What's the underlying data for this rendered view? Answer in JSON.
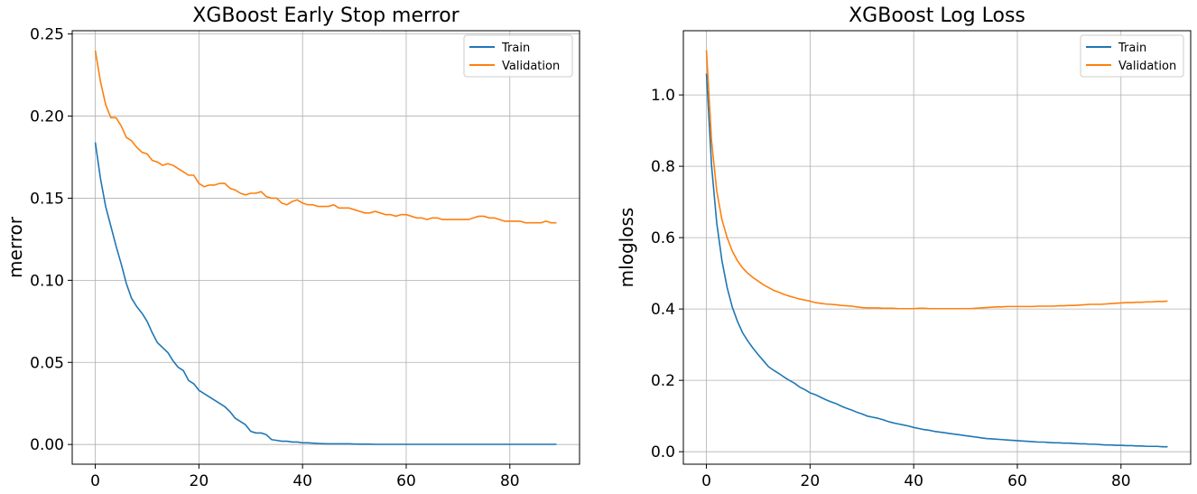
{
  "chart_data": [
    {
      "type": "line",
      "title": "XGBoost Early Stop merror",
      "xlabel": "",
      "ylabel": "merror",
      "xlim": [
        -4.45,
        93.45
      ],
      "ylim": [
        -0.012,
        0.252
      ],
      "xticks": [
        0,
        20,
        40,
        60,
        80
      ],
      "yticks": [
        0.0,
        0.05,
        0.1,
        0.15,
        0.2,
        0.25
      ],
      "ytick_labels": [
        "0.00",
        "0.05",
        "0.10",
        "0.15",
        "0.20",
        "0.25"
      ],
      "grid": true,
      "legend_position": "top-right",
      "x": [
        0,
        1,
        2,
        3,
        4,
        5,
        6,
        7,
        8,
        9,
        10,
        11,
        12,
        13,
        14,
        15,
        16,
        17,
        18,
        19,
        20,
        21,
        22,
        23,
        24,
        25,
        26,
        27,
        28,
        29,
        30,
        31,
        32,
        33,
        34,
        35,
        36,
        37,
        38,
        39,
        40,
        41,
        42,
        43,
        44,
        45,
        46,
        47,
        48,
        49,
        50,
        51,
        52,
        53,
        54,
        55,
        56,
        57,
        58,
        59,
        60,
        61,
        62,
        63,
        64,
        65,
        66,
        67,
        68,
        69,
        70,
        71,
        72,
        73,
        74,
        75,
        76,
        77,
        78,
        79,
        80,
        81,
        82,
        83,
        84,
        85,
        86,
        87,
        88,
        89
      ],
      "series": [
        {
          "name": "Train",
          "color": "#1f77b4",
          "values": [
            0.184,
            0.162,
            0.145,
            0.133,
            0.121,
            0.11,
            0.098,
            0.089,
            0.084,
            0.08,
            0.075,
            0.068,
            0.062,
            0.059,
            0.056,
            0.051,
            0.047,
            0.045,
            0.039,
            0.037,
            0.033,
            0.031,
            0.029,
            0.027,
            0.025,
            0.023,
            0.02,
            0.016,
            0.014,
            0.012,
            0.008,
            0.007,
            0.007,
            0.006,
            0.003,
            0.0025,
            0.002,
            0.002,
            0.0015,
            0.0015,
            0.001,
            0.001,
            0.0008,
            0.0006,
            0.0005,
            0.0004,
            0.0004,
            0.0004,
            0.0004,
            0.0004,
            0.0003,
            0.0002,
            0.0002,
            0.0002,
            0.0001,
            0.0001,
            0.0001,
            0.0001,
            0.0001,
            0.0001,
            0.0001,
            0.0001,
            0.0001,
            0.0001,
            0.0001,
            0.0001,
            0.0001,
            0.0001,
            0.0001,
            0.0001,
            0.0001,
            0.0001,
            0.0001,
            0.0001,
            0.0001,
            0.0001,
            0.0001,
            0.0001,
            0.0001,
            0.0001,
            0.0001,
            0.0001,
            0.0001,
            0.0001,
            0.0001,
            0.0001,
            0.0001,
            0.0001,
            0.0001,
            0.0001
          ]
        },
        {
          "name": "Validation",
          "color": "#ff7f0e",
          "values": [
            0.24,
            0.221,
            0.207,
            0.199,
            0.199,
            0.194,
            0.187,
            0.185,
            0.181,
            0.178,
            0.177,
            0.173,
            0.172,
            0.17,
            0.171,
            0.17,
            0.168,
            0.166,
            0.164,
            0.164,
            0.159,
            0.157,
            0.158,
            0.158,
            0.159,
            0.159,
            0.156,
            0.155,
            0.153,
            0.152,
            0.153,
            0.153,
            0.154,
            0.151,
            0.15,
            0.15,
            0.147,
            0.146,
            0.148,
            0.149,
            0.147,
            0.146,
            0.146,
            0.145,
            0.145,
            0.145,
            0.146,
            0.144,
            0.144,
            0.144,
            0.143,
            0.142,
            0.141,
            0.141,
            0.142,
            0.141,
            0.14,
            0.14,
            0.139,
            0.14,
            0.14,
            0.139,
            0.138,
            0.138,
            0.137,
            0.138,
            0.138,
            0.137,
            0.137,
            0.137,
            0.137,
            0.137,
            0.137,
            0.138,
            0.139,
            0.139,
            0.138,
            0.138,
            0.137,
            0.136,
            0.136,
            0.136,
            0.136,
            0.135,
            0.135,
            0.135,
            0.135,
            0.136,
            0.135,
            0.135
          ]
        }
      ]
    },
    {
      "type": "line",
      "title": "XGBoost Log Loss",
      "xlabel": "",
      "ylabel": "mlogloss",
      "xlim": [
        -4.45,
        93.45
      ],
      "ylim": [
        -0.035,
        1.18
      ],
      "xticks": [
        0,
        20,
        40,
        60,
        80
      ],
      "yticks": [
        0.0,
        0.2,
        0.4,
        0.6,
        0.8,
        1.0
      ],
      "ytick_labels": [
        "0.0",
        "0.2",
        "0.4",
        "0.6",
        "0.8",
        "1.0"
      ],
      "grid": true,
      "legend_position": "top-right",
      "x": [
        0,
        1,
        2,
        3,
        4,
        5,
        6,
        7,
        8,
        9,
        10,
        11,
        12,
        13,
        14,
        15,
        16,
        17,
        18,
        19,
        20,
        21,
        22,
        23,
        24,
        25,
        26,
        27,
        28,
        29,
        30,
        31,
        32,
        33,
        34,
        35,
        36,
        37,
        38,
        39,
        40,
        41,
        42,
        43,
        44,
        45,
        46,
        47,
        48,
        49,
        50,
        51,
        52,
        53,
        54,
        55,
        56,
        57,
        58,
        59,
        60,
        61,
        62,
        63,
        64,
        65,
        66,
        67,
        68,
        69,
        70,
        71,
        72,
        73,
        74,
        75,
        76,
        77,
        78,
        79,
        80,
        81,
        82,
        83,
        84,
        85,
        86,
        87,
        88,
        89
      ],
      "series": [
        {
          "name": "Train",
          "color": "#1f77b4",
          "values": [
            1.06,
            0.8,
            0.64,
            0.535,
            0.46,
            0.405,
            0.365,
            0.333,
            0.31,
            0.29,
            0.272,
            0.255,
            0.238,
            0.228,
            0.219,
            0.209,
            0.2,
            0.192,
            0.181,
            0.174,
            0.165,
            0.16,
            0.153,
            0.146,
            0.14,
            0.135,
            0.128,
            0.122,
            0.117,
            0.111,
            0.106,
            0.1,
            0.097,
            0.094,
            0.09,
            0.085,
            0.081,
            0.078,
            0.075,
            0.072,
            0.068,
            0.065,
            0.062,
            0.06,
            0.057,
            0.055,
            0.053,
            0.051,
            0.049,
            0.047,
            0.045,
            0.043,
            0.041,
            0.039,
            0.037,
            0.036,
            0.035,
            0.034,
            0.033,
            0.032,
            0.031,
            0.03,
            0.029,
            0.028,
            0.027,
            0.027,
            0.026,
            0.025,
            0.025,
            0.024,
            0.024,
            0.023,
            0.022,
            0.022,
            0.021,
            0.021,
            0.02,
            0.019,
            0.019,
            0.018,
            0.018,
            0.017,
            0.017,
            0.016,
            0.016,
            0.015,
            0.015,
            0.015,
            0.014,
            0.014
          ]
        },
        {
          "name": "Validation",
          "color": "#ff7f0e",
          "values": [
            1.125,
            0.87,
            0.73,
            0.65,
            0.6,
            0.562,
            0.535,
            0.515,
            0.5,
            0.488,
            0.478,
            0.468,
            0.46,
            0.452,
            0.447,
            0.441,
            0.436,
            0.432,
            0.428,
            0.425,
            0.422,
            0.418,
            0.416,
            0.414,
            0.413,
            0.412,
            0.41,
            0.409,
            0.408,
            0.406,
            0.404,
            0.403,
            0.403,
            0.403,
            0.402,
            0.402,
            0.402,
            0.401,
            0.401,
            0.401,
            0.401,
            0.402,
            0.402,
            0.401,
            0.401,
            0.401,
            0.401,
            0.401,
            0.401,
            0.401,
            0.401,
            0.401,
            0.402,
            0.403,
            0.404,
            0.405,
            0.406,
            0.406,
            0.407,
            0.407,
            0.407,
            0.407,
            0.407,
            0.407,
            0.408,
            0.408,
            0.408,
            0.408,
            0.409,
            0.409,
            0.41,
            0.41,
            0.411,
            0.412,
            0.413,
            0.413,
            0.413,
            0.414,
            0.415,
            0.416,
            0.417,
            0.418,
            0.418,
            0.419,
            0.419,
            0.42,
            0.42,
            0.421,
            0.421,
            0.422
          ]
        }
      ]
    }
  ]
}
